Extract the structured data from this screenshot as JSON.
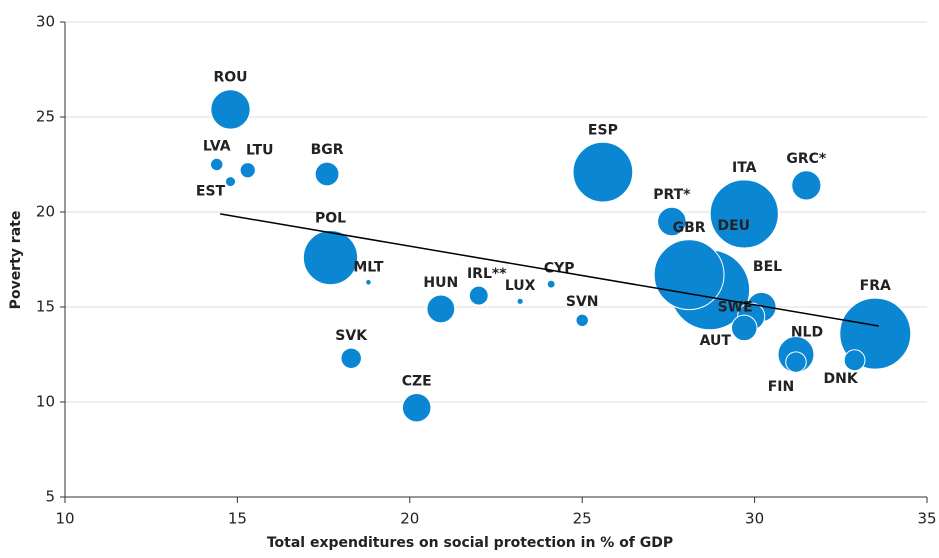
{
  "chart_data": {
    "type": "scatter",
    "x_label": "Total expenditures on social protection in % of GDP",
    "y_label": "Poverty rate",
    "color": "#0a86d2",
    "categories": [
      "ROU",
      "LVA",
      "LTU",
      "EST",
      "BGR",
      "POL",
      "MLT",
      "HUN",
      "IRL**",
      "LUX",
      "CYP",
      "SVN",
      "SVK",
      "CZE",
      "ESP",
      "PRT*",
      "ITA",
      "DEU",
      "GBR",
      "BEL",
      "SWE",
      "AUT",
      "NLD",
      "FIN",
      "DNK",
      "GRC*",
      "FRA"
    ],
    "x": [
      14.8,
      14.4,
      15.3,
      14.8,
      17.6,
      17.7,
      18.8,
      20.9,
      22.0,
      23.2,
      24.1,
      25.0,
      18.3,
      20.2,
      25.6,
      27.6,
      29.7,
      28.7,
      28.1,
      30.2,
      29.9,
      29.7,
      31.2,
      31.2,
      32.9,
      31.5,
      33.5
    ],
    "values": [
      25.4,
      22.5,
      22.2,
      21.6,
      22.0,
      17.6,
      16.3,
      14.9,
      15.6,
      15.3,
      16.2,
      14.3,
      12.3,
      9.7,
      22.1,
      19.5,
      19.9,
      15.9,
      16.7,
      15.0,
      14.5,
      13.9,
      12.5,
      12.1,
      12.2,
      21.4,
      13.6
    ],
    "sizes": [
      20,
      2,
      3,
      1.3,
      7.3,
      38,
      0.4,
      10,
      4.6,
      0.5,
      0.8,
      2,
      5.4,
      10.5,
      46,
      10.5,
      60,
      82,
      63,
      11,
      9.5,
      8.4,
      16.7,
      5.4,
      5.6,
      11,
      65
    ],
    "trend": {
      "x": [
        14.5,
        33.6
      ],
      "values": [
        19.9,
        14.0
      ]
    },
    "xlim": [
      10,
      35
    ],
    "xticks": [
      10,
      15,
      20,
      25,
      30,
      35
    ],
    "ylim": [
      5,
      30
    ],
    "yticks": [
      5,
      10,
      15,
      20,
      25,
      30
    ],
    "grid": true
  }
}
